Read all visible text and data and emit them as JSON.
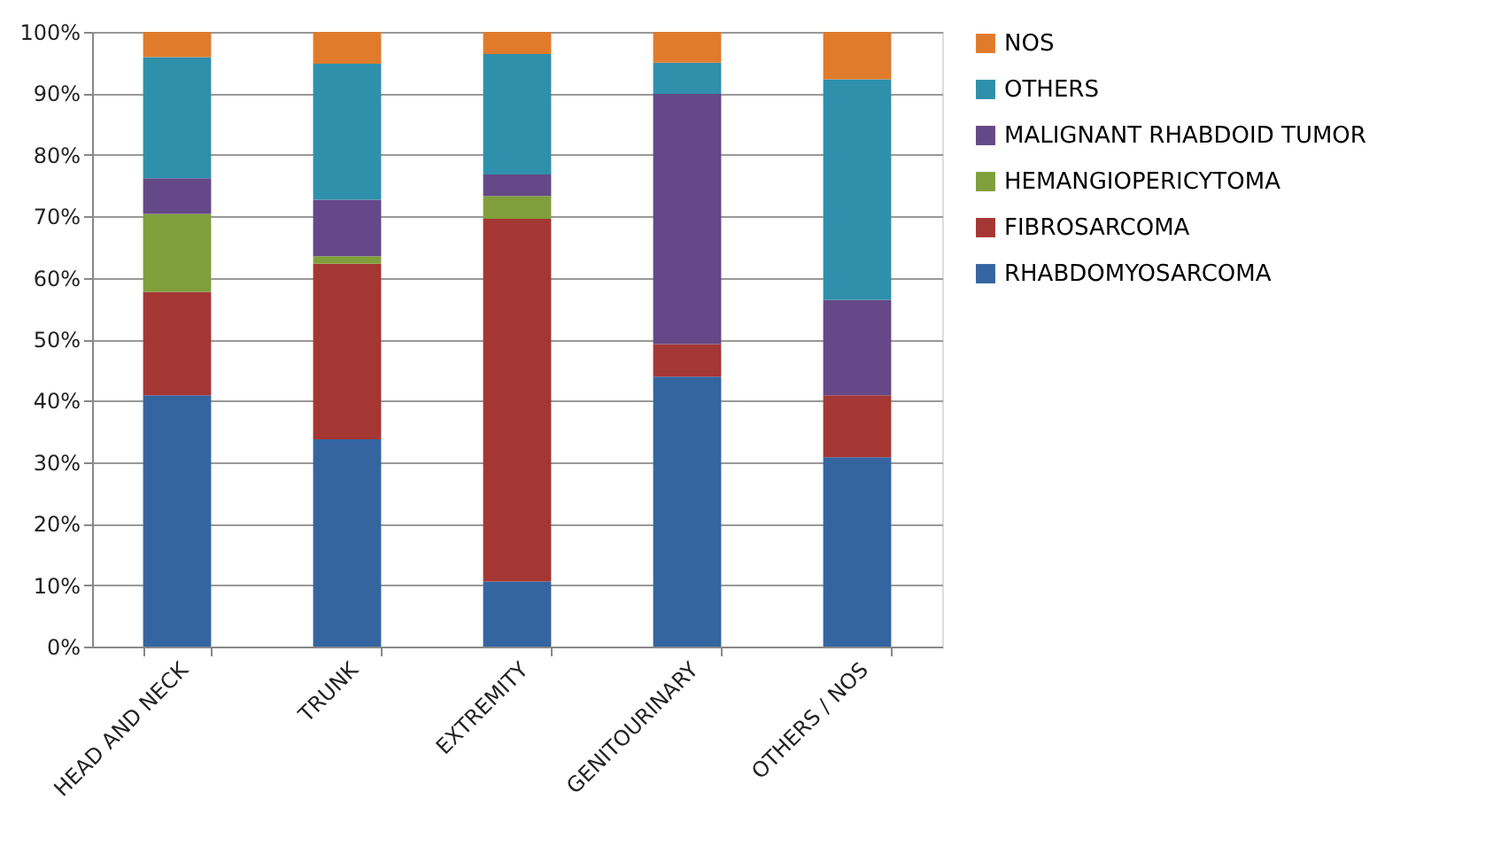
{
  "chart_data": {
    "type": "bar",
    "stacked": true,
    "categories": [
      "HEAD AND NECK",
      "TRUNK",
      "EXTREMITY",
      "GENITOURINARY",
      "OTHERS / NOS"
    ],
    "series": [
      {
        "name": "RHABDOMYOSARCOMA",
        "color": "#3465a0",
        "values": [
          40.9,
          33.7,
          10.6,
          43.9,
          30.8
        ]
      },
      {
        "name": "FIBROSARCOMA",
        "color": "#a43734",
        "values": [
          16.8,
          28.6,
          59.0,
          5.3,
          10.1
        ]
      },
      {
        "name": "HEMANGIOPERICYTOMA",
        "color": "#7f9f3c",
        "values": [
          12.7,
          1.2,
          3.7,
          0,
          0
        ]
      },
      {
        "name": "MALIGNANT RHABDOID TUMOR",
        "color": "#644887",
        "values": [
          5.8,
          9.2,
          3.5,
          40.7,
          15.5
        ]
      },
      {
        "name": "OTHERS",
        "color": "#2f90ab",
        "values": [
          19.7,
          22.1,
          19.6,
          5.1,
          35.9
        ]
      },
      {
        "name": "NOS",
        "color": "#e07b2c",
        "values": [
          4.1,
          5.2,
          3.6,
          5.0,
          7.7
        ]
      }
    ],
    "ylim": [
      0,
      100
    ],
    "yticks": [
      {
        "value": 0,
        "label": "0%"
      },
      {
        "value": 10,
        "label": "10%"
      },
      {
        "value": 20,
        "label": "20%"
      },
      {
        "value": 30,
        "label": "30%"
      },
      {
        "value": 40,
        "label": "40%"
      },
      {
        "value": 50,
        "label": "50%"
      },
      {
        "value": 60,
        "label": "60%"
      },
      {
        "value": 70,
        "label": "70%"
      },
      {
        "value": 80,
        "label": "80%"
      },
      {
        "value": 90,
        "label": "90%"
      },
      {
        "value": 100,
        "label": "100%"
      }
    ],
    "grid": "y",
    "legend": "right"
  }
}
